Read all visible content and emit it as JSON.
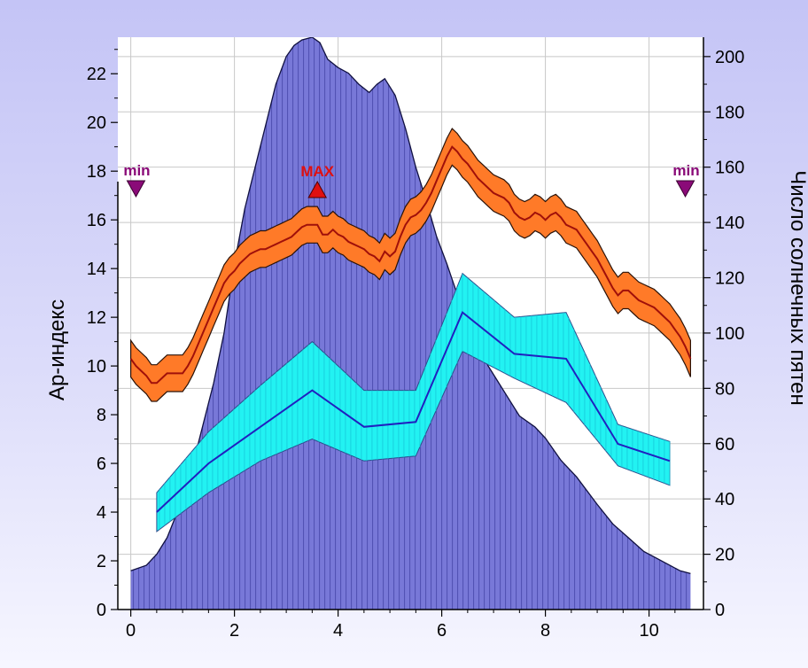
{
  "chart_data": {
    "type": "area",
    "ylabel_left": "Ap-индекс",
    "ylabel_right": "Число солнечных пятен",
    "xlim": [
      -0.25,
      11.05
    ],
    "ylim_left": [
      0,
      23.5
    ],
    "ylim_right": [
      0,
      207
    ],
    "x_ticks": [
      "0",
      "2",
      "4",
      "6",
      "8",
      "10"
    ],
    "y_left_ticks": [
      "0",
      "2",
      "4",
      "6",
      "8",
      "10",
      "12",
      "14",
      "16",
      "18",
      "20",
      "22"
    ],
    "y_right_ticks": [
      "0",
      "20",
      "40",
      "60",
      "80",
      "100",
      "120",
      "140",
      "160",
      "180",
      "200"
    ],
    "grid": true,
    "colors": {
      "sunspot_fill": "#7878d8",
      "sunspot_line": "#101040",
      "ap_band": "#ff7a28",
      "ap_line": "#a0100a",
      "cyan_band": "#22f2f2",
      "cyan_line": "#2020c0",
      "min_marker": "#8a0a78",
      "max_marker": "#e01010"
    },
    "markers": [
      {
        "label": "min",
        "x": 0.1,
        "type": "min"
      },
      {
        "label": "MAX",
        "x": 3.6,
        "type": "max"
      },
      {
        "label": "min",
        "x": 10.7,
        "type": "min"
      }
    ],
    "series": [
      {
        "axis": "right",
        "x": [
          0,
          0.3,
          0.5,
          0.7,
          1.0,
          1.3,
          1.6,
          1.8,
          2.0,
          2.2,
          2.4,
          2.6,
          2.8,
          3.0,
          3.15,
          3.3,
          3.5,
          3.65,
          3.8,
          4.0,
          4.2,
          4.4,
          4.6,
          4.75,
          4.9,
          5.1,
          5.3,
          5.5,
          5.7,
          5.9,
          6.1,
          6.3,
          6.5,
          6.7,
          6.9,
          7.1,
          7.3,
          7.5,
          7.8,
          8.0,
          8.3,
          8.6,
          9.0,
          9.3,
          9.6,
          9.9,
          10.2,
          10.4,
          10.6,
          10.8
        ],
        "values": [
          14,
          16,
          20,
          26,
          40,
          60,
          82,
          100,
          125,
          145,
          160,
          175,
          190,
          200,
          204,
          206,
          207,
          205,
          199,
          196,
          194,
          190,
          187,
          190,
          192,
          186,
          174,
          160,
          148,
          135,
          125,
          114,
          103,
          96,
          88,
          82,
          76,
          70,
          66,
          62,
          54,
          48,
          38,
          31,
          26,
          21,
          18,
          16,
          14,
          13
        ]
      },
      {
        "axis": "left",
        "x": [
          0,
          0.1,
          0.2,
          0.3,
          0.4,
          0.5,
          0.6,
          0.7,
          0.8,
          0.9,
          1.0,
          1.1,
          1.2,
          1.3,
          1.4,
          1.5,
          1.6,
          1.7,
          1.8,
          1.9,
          2.0,
          2.1,
          2.2,
          2.3,
          2.4,
          2.5,
          2.6,
          2.7,
          2.8,
          2.9,
          3.0,
          3.1,
          3.2,
          3.3,
          3.4,
          3.5,
          3.6,
          3.7,
          3.8,
          3.9,
          4.0,
          4.1,
          4.2,
          4.3,
          4.4,
          4.5,
          4.6,
          4.7,
          4.8,
          4.9,
          5.0,
          5.1,
          5.2,
          5.3,
          5.4,
          5.5,
          5.6,
          5.7,
          5.8,
          5.9,
          6.0,
          6.1,
          6.2,
          6.3,
          6.4,
          6.5,
          6.6,
          6.7,
          6.8,
          6.9,
          7.0,
          7.1,
          7.2,
          7.3,
          7.4,
          7.5,
          7.6,
          7.7,
          7.8,
          7.9,
          8.0,
          8.1,
          8.2,
          8.3,
          8.4,
          8.5,
          8.6,
          8.7,
          8.8,
          8.9,
          9.0,
          9.1,
          9.2,
          9.3,
          9.4,
          9.5,
          9.6,
          9.7,
          9.8,
          9.9,
          10.0,
          10.1,
          10.2,
          10.3,
          10.4,
          10.5,
          10.6,
          10.7,
          10.8
        ],
        "values": [
          10.3,
          10.0,
          9.8,
          9.6,
          9.3,
          9.3,
          9.5,
          9.7,
          9.7,
          9.7,
          9.7,
          10.0,
          10.4,
          10.9,
          11.4,
          11.9,
          12.4,
          12.9,
          13.4,
          13.7,
          13.9,
          14.2,
          14.4,
          14.6,
          14.7,
          14.8,
          14.8,
          14.9,
          15.0,
          15.1,
          15.2,
          15.3,
          15.5,
          15.7,
          15.8,
          15.8,
          15.8,
          15.4,
          15.4,
          15.6,
          15.4,
          15.3,
          15.1,
          15.0,
          14.9,
          14.8,
          14.6,
          14.5,
          14.3,
          14.7,
          14.5,
          14.7,
          15.3,
          15.8,
          16.1,
          16.2,
          16.4,
          16.7,
          17.1,
          17.6,
          18.1,
          18.6,
          19.0,
          18.8,
          18.5,
          18.3,
          18.0,
          17.7,
          17.5,
          17.3,
          17.1,
          17.0,
          16.9,
          16.7,
          16.3,
          16.1,
          16.0,
          16.1,
          16.3,
          16.2,
          16.0,
          16.2,
          16.3,
          16.1,
          15.8,
          15.7,
          15.6,
          15.3,
          15.0,
          14.7,
          14.4,
          14.0,
          13.6,
          13.2,
          12.9,
          13.1,
          13.1,
          12.9,
          12.7,
          12.6,
          12.5,
          12.4,
          12.2,
          12.0,
          11.8,
          11.5,
          11.2,
          10.8,
          10.3
        ],
        "band": 0.75
      },
      {
        "axis": "left",
        "x": [
          0.5,
          1.5,
          2.5,
          3.5,
          4.5,
          5.5,
          6.4,
          7.4,
          8.4,
          9.4,
          10.4
        ],
        "values": [
          4.0,
          6.0,
          7.5,
          9.0,
          7.5,
          7.7,
          12.2,
          10.5,
          10.3,
          6.8,
          6.1
        ],
        "upper": [
          4.8,
          7.3,
          9.2,
          11.0,
          9.0,
          9.0,
          13.8,
          12.0,
          12.2,
          7.6,
          6.9
        ],
        "lower": [
          3.2,
          4.8,
          6.1,
          7.0,
          6.1,
          6.3,
          10.6,
          9.5,
          8.5,
          5.9,
          5.1
        ]
      }
    ]
  }
}
